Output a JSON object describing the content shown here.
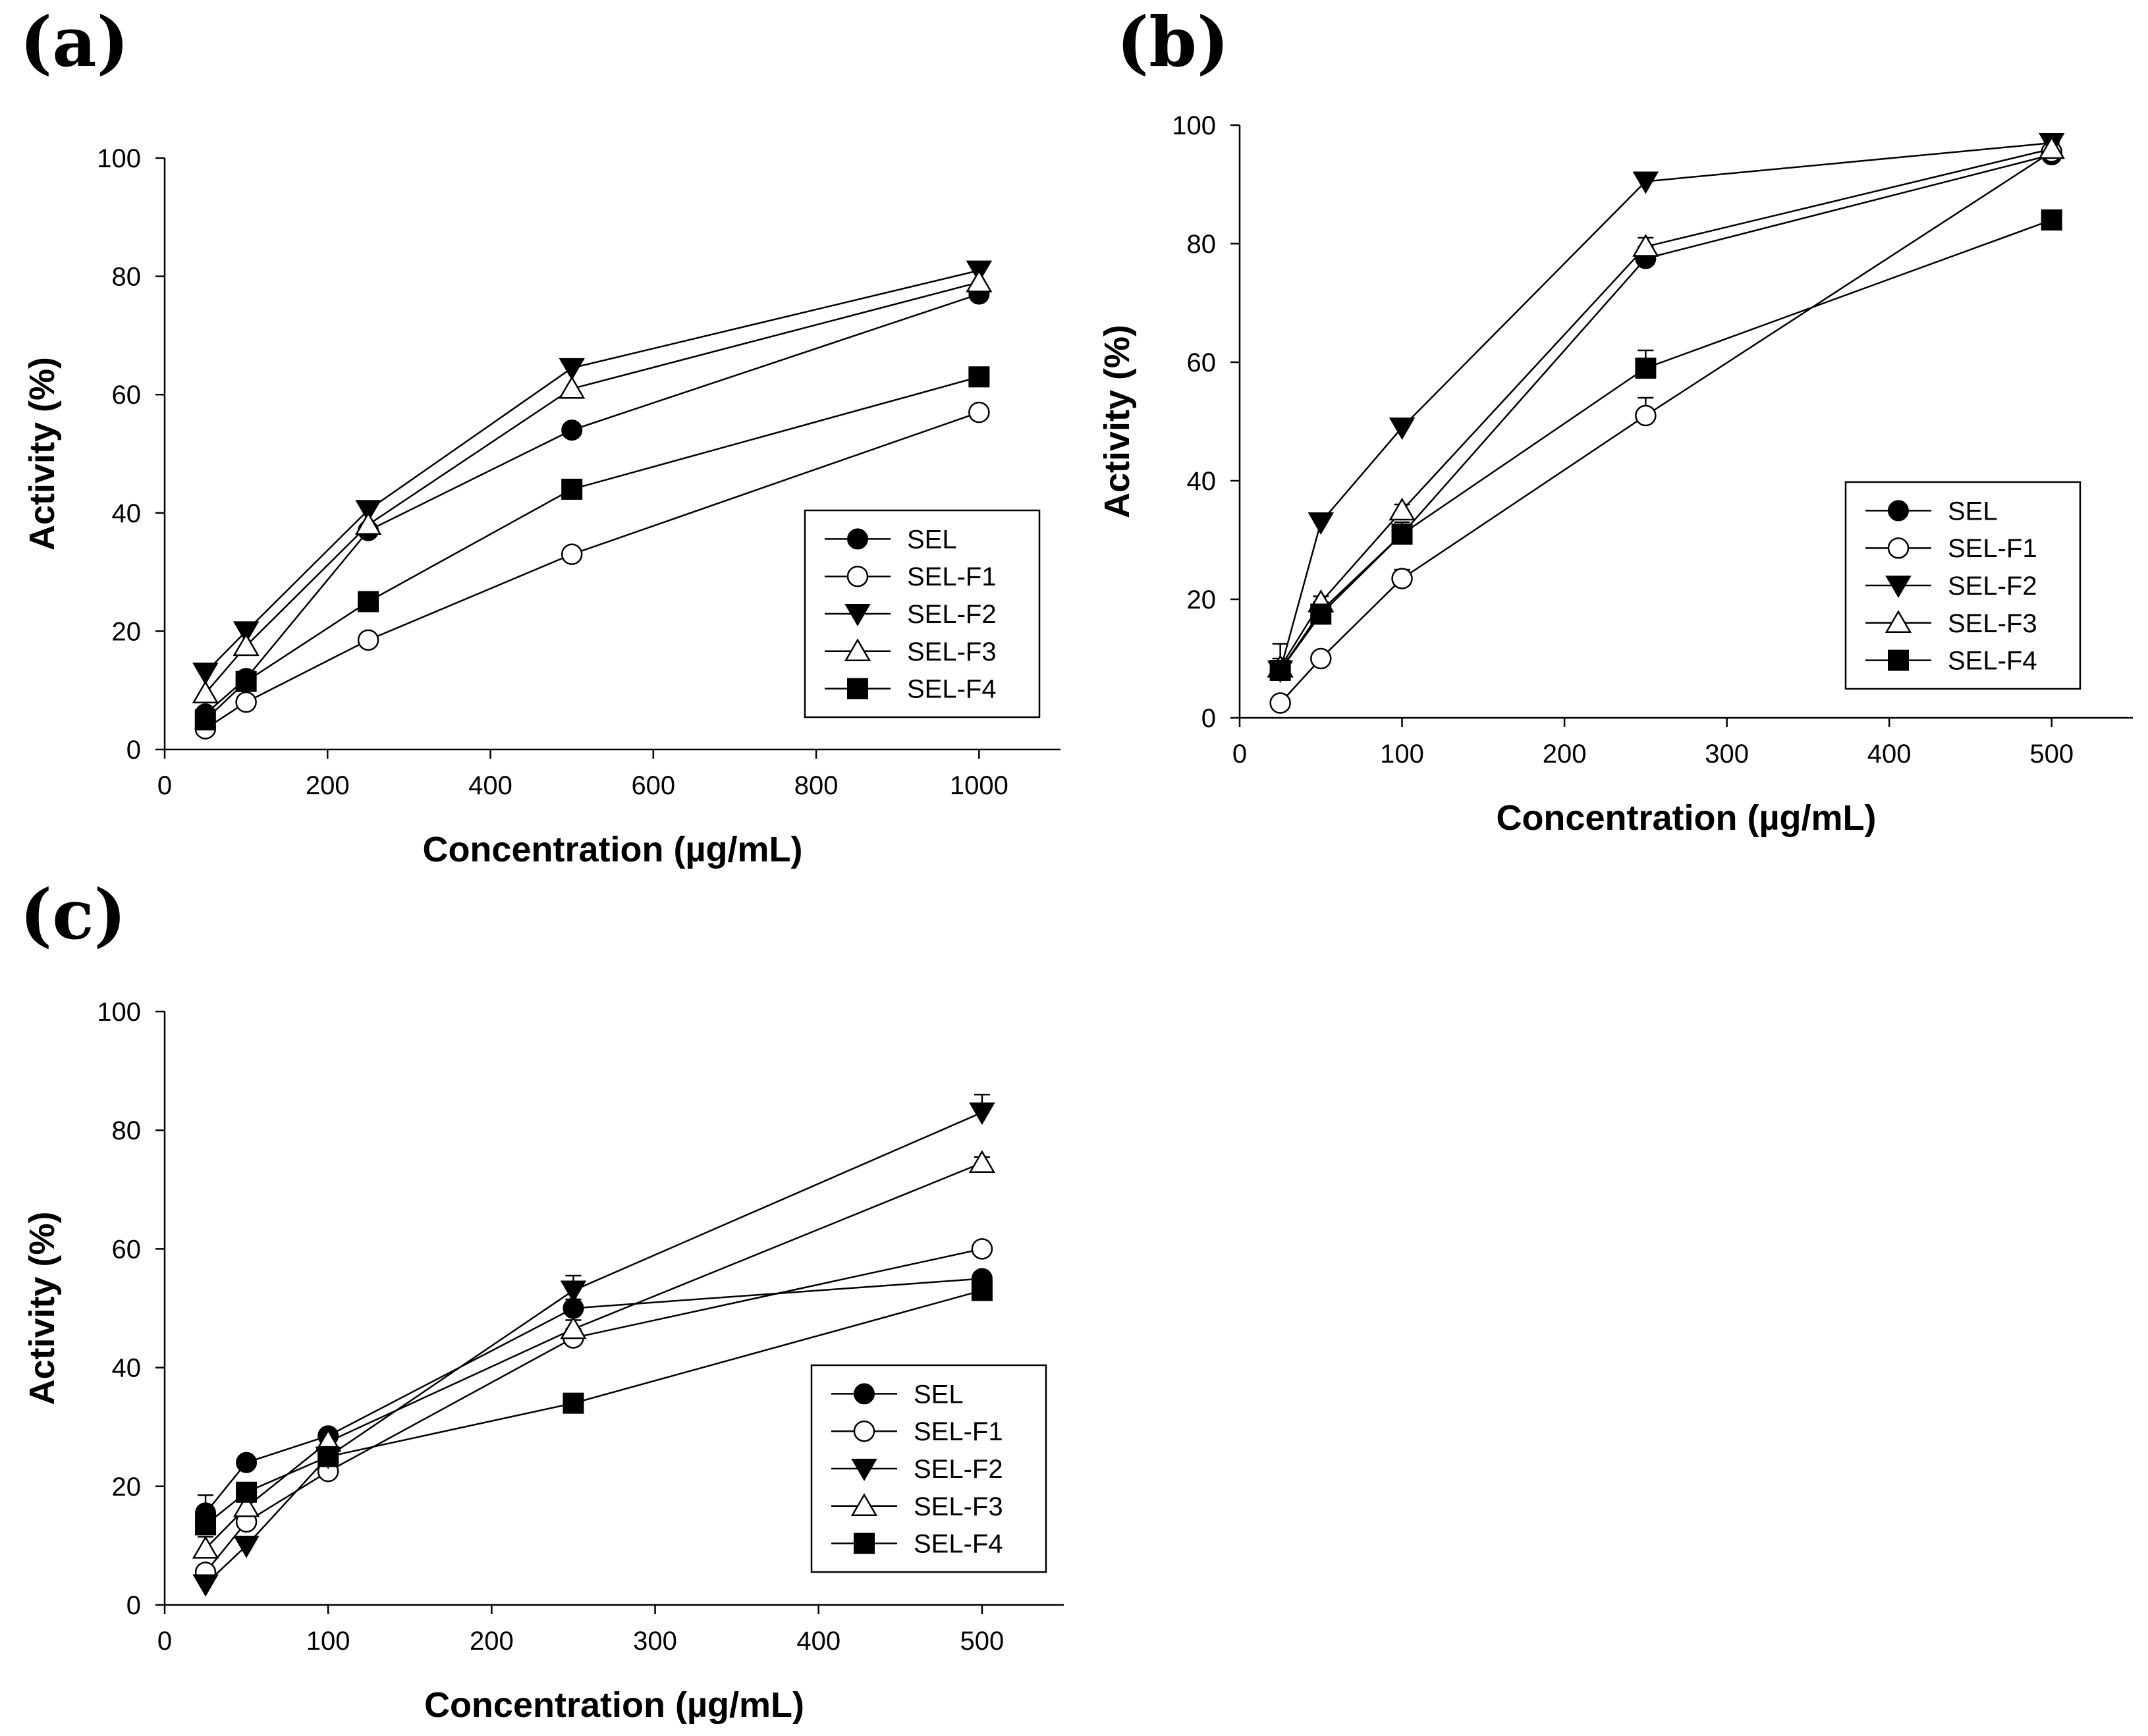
{
  "chart_data": [
    {
      "type": "line",
      "label": "(a)",
      "xlabel": "Concentration (µg/mL)",
      "ylabel": "Activity (%)",
      "xlim": [
        0,
        1100
      ],
      "ylim": [
        0,
        100
      ],
      "xticks": [
        0,
        200,
        400,
        600,
        800,
        1000
      ],
      "yticks": [
        0,
        20,
        40,
        60,
        80,
        100
      ],
      "legend_position": "lower-right",
      "series": [
        {
          "name": "SEL",
          "marker": "circle-filled",
          "x": [
            50,
            100,
            250,
            500,
            1000
          ],
          "values": [
            6,
            12,
            37,
            54,
            77
          ]
        },
        {
          "name": "SEL-F1",
          "marker": "circle-open",
          "x": [
            50,
            100,
            250,
            500,
            1000
          ],
          "values": [
            3.5,
            8,
            18.5,
            33,
            57
          ]
        },
        {
          "name": "SEL-F2",
          "marker": "triangle-down-filled",
          "x": [
            50,
            100,
            250,
            500,
            1000
          ],
          "values": [
            13,
            20,
            40.5,
            64.5,
            81
          ]
        },
        {
          "name": "SEL-F3",
          "marker": "triangle-up-open",
          "x": [
            50,
            100,
            250,
            500,
            1000
          ],
          "values": [
            9.5,
            17.5,
            38,
            61,
            79
          ]
        },
        {
          "name": "SEL-F4",
          "marker": "square-filled",
          "x": [
            50,
            100,
            250,
            500,
            1000
          ],
          "values": [
            5,
            11.5,
            25,
            44,
            63
          ]
        }
      ]
    },
    {
      "type": "line",
      "label": "(b)",
      "xlabel": "Concentration (µg/mL)",
      "ylabel": "Activity (%)",
      "xlim": [
        0,
        550
      ],
      "ylim": [
        0,
        100
      ],
      "xticks": [
        0,
        100,
        200,
        300,
        400,
        500
      ],
      "yticks": [
        0,
        20,
        40,
        60,
        80,
        100
      ],
      "legend_position": "lower-right",
      "series": [
        {
          "name": "SEL",
          "marker": "circle-filled",
          "x": [
            25,
            50,
            100,
            250,
            500
          ],
          "values": [
            8,
            18,
            31,
            77.5,
            95
          ],
          "errors": [
            1,
            1.5,
            1.5,
            2,
            2
          ]
        },
        {
          "name": "SEL-F1",
          "marker": "circle-open",
          "x": [
            25,
            50,
            100,
            250,
            500
          ],
          "values": [
            2.5,
            10,
            23.5,
            51,
            95.5
          ],
          "errors": [
            1,
            1,
            1.5,
            3,
            1
          ]
        },
        {
          "name": "SEL-F2",
          "marker": "triangle-down-filled",
          "x": [
            25,
            50,
            100,
            250,
            500
          ],
          "values": [
            8,
            33,
            49,
            90.5,
            97
          ],
          "errors": [
            1,
            1,
            1,
            1,
            1
          ]
        },
        {
          "name": "SEL-F3",
          "marker": "triangle-up-open",
          "x": [
            25,
            50,
            100,
            250,
            500
          ],
          "values": [
            8.5,
            19.5,
            35,
            79.5,
            96
          ],
          "errors": [
            4,
            1,
            1,
            1.5,
            1
          ]
        },
        {
          "name": "SEL-F4",
          "marker": "square-filled",
          "x": [
            25,
            50,
            100,
            250,
            500
          ],
          "values": [
            8,
            17.5,
            31,
            59,
            84
          ],
          "errors": [
            2,
            1,
            2,
            3,
            1
          ]
        }
      ]
    },
    {
      "type": "line",
      "label": "(c)",
      "xlabel": "Concentration (µg/mL)",
      "ylabel": "Activity (%)",
      "xlim": [
        0,
        550
      ],
      "ylim": [
        0,
        100
      ],
      "xticks": [
        0,
        100,
        200,
        300,
        400,
        500
      ],
      "yticks": [
        0,
        20,
        40,
        60,
        80,
        100
      ],
      "legend_position": "lower-right",
      "series": [
        {
          "name": "SEL",
          "marker": "circle-filled",
          "x": [
            25,
            50,
            100,
            250,
            500
          ],
          "values": [
            15.5,
            24,
            28.5,
            50,
            55
          ],
          "errors": [
            3,
            1,
            1,
            1.5,
            1
          ]
        },
        {
          "name": "SEL-F1",
          "marker": "circle-open",
          "x": [
            25,
            50,
            100,
            250,
            500
          ],
          "values": [
            5.5,
            14,
            22.5,
            45,
            60
          ],
          "errors": [
            1,
            1.5,
            1.5,
            1.5,
            1
          ]
        },
        {
          "name": "SEL-F2",
          "marker": "triangle-down-filled",
          "x": [
            25,
            50,
            100,
            250,
            500
          ],
          "values": [
            3.5,
            10,
            25,
            53,
            83
          ],
          "errors": [
            1,
            1,
            1,
            2.5,
            3
          ]
        },
        {
          "name": "SEL-F3",
          "marker": "triangle-up-open",
          "x": [
            25,
            50,
            100,
            250,
            500
          ],
          "values": [
            9.5,
            16.5,
            27.5,
            46.5,
            74.5
          ],
          "errors": [
            2,
            1,
            1,
            1.5,
            1
          ]
        },
        {
          "name": "SEL-F4",
          "marker": "square-filled",
          "x": [
            25,
            50,
            100,
            250,
            500
          ],
          "values": [
            13.5,
            19,
            25,
            34,
            53
          ],
          "errors": [
            1.5,
            1,
            1,
            1,
            2
          ]
        }
      ]
    }
  ]
}
